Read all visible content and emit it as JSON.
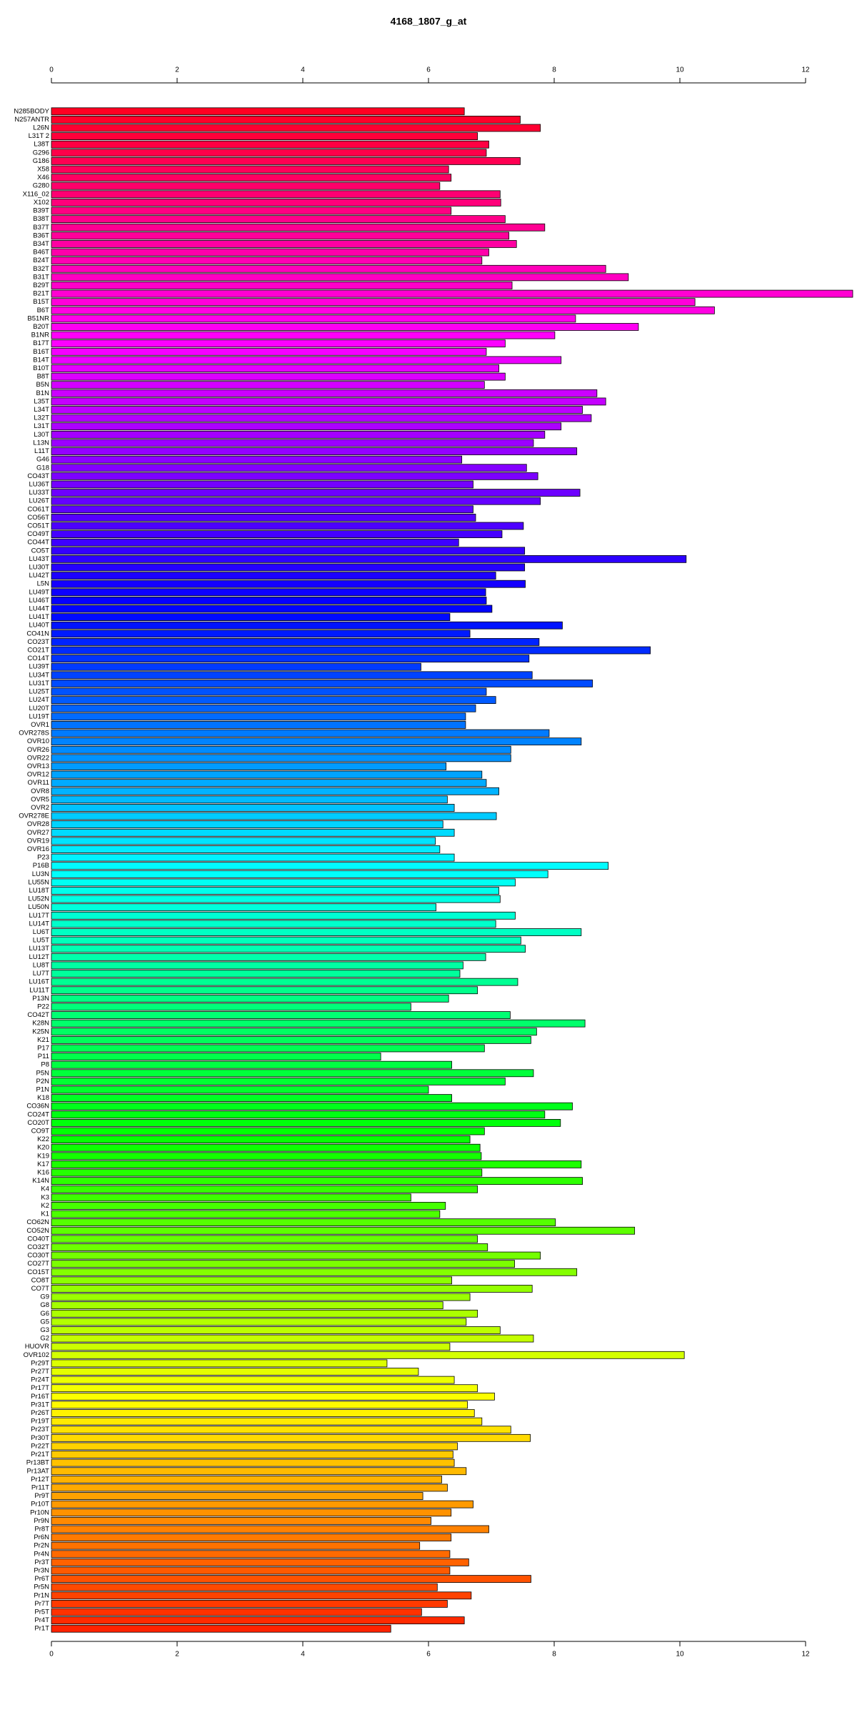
{
  "chart_data": {
    "type": "barh",
    "title": "4168_1807_g_at",
    "categories": [
      "N285BODY",
      "N257ANTR",
      "L26N",
      "L31T 2",
      "L38T",
      "G296",
      "G186",
      "X58",
      "X46",
      "G280",
      "X116_02",
      "X102",
      "B39T",
      "B38T",
      "B37T",
      "B36T",
      "B34T",
      "B46T",
      "B24T",
      "B32T",
      "B31T",
      "B29T",
      "B21T",
      "B15T",
      "B6T",
      "B51NR",
      "B20T",
      "B1NR",
      "B17T",
      "B16T",
      "B14T",
      "B10T",
      "B8T",
      "B5N",
      "B1N",
      "L35T",
      "L34T",
      "L32T",
      "L31T",
      "L30T",
      "L13N",
      "L11T",
      "G46",
      "G18",
      "CO43T",
      "LU36T",
      "LU33T",
      "LU26T",
      "CO61T",
      "CO56T",
      "CO51T",
      "CO49T",
      "CO44T",
      "CO5T",
      "LU43T",
      "LU30T",
      "LU42T",
      "L5N",
      "LU49T",
      "LU46T",
      "LU44T",
      "LU41T",
      "LU40T",
      "CO41N",
      "CO23T",
      "CO21T",
      "CO14T",
      "LU39T",
      "LU34T",
      "LU31T",
      "LU25T",
      "LU24T",
      "LU20T",
      "LU19T",
      "OVR1",
      "OVR278S",
      "OVR10",
      "OVR26",
      "OVR22",
      "OVR13",
      "OVR12",
      "OVR11",
      "OVR8",
      "OVR5",
      "OVR2",
      "OVR278E",
      "OVR28",
      "OVR27",
      "OVR19",
      "OVR16",
      "P23",
      "P16B",
      "LU3N",
      "LU55N",
      "LU18T",
      "LU52N",
      "LU50N",
      "LU17T",
      "LU14T",
      "LU6T",
      "LU5T",
      "LU13T",
      "LU12T",
      "LU8T",
      "LU7T",
      "LU16T",
      "LU11T",
      "P13N",
      "P22",
      "CO42T",
      "K28N",
      "K25N",
      "K21",
      "P17",
      "P11",
      "P8",
      "P5N",
      "P2N",
      "P1N",
      "K18",
      "CO36N",
      "CO24T",
      "CO20T",
      "CO9T",
      "K22",
      "K20",
      "K19",
      "K17",
      "K16",
      "K14N",
      "K4",
      "K3",
      "K2",
      "K1",
      "CO62N",
      "CO52N",
      "CO40T",
      "CO32T",
      "CO30T",
      "CO27T",
      "CO15T",
      "CO8T",
      "CO7T",
      "G9",
      "G8",
      "G6",
      "G5",
      "G3",
      "G2",
      "HUOVR",
      "OVR102",
      "Pr29T",
      "Pr27T",
      "Pr24T",
      "Pr17T",
      "Pr16T",
      "Pr31T",
      "Pr26T",
      "Pr19T",
      "Pr23T",
      "Pr30T",
      "Pr22T",
      "Pr21T",
      "Pr13BT",
      "Pr13AT",
      "Pr12T",
      "Pr11T",
      "Pr9T",
      "Pr10T",
      "Pr10N",
      "Pr9N",
      "Pr8T",
      "Pr6N",
      "Pr2N",
      "Pr4N",
      "Pr3T",
      "Pr3N",
      "Pr6T",
      "Pr5N",
      "Pr1N",
      "Pr7T",
      "Pr5T",
      "Pr4T",
      "Pr1T"
    ],
    "values": [
      6.57,
      7.46,
      7.78,
      6.78,
      6.96,
      6.92,
      7.46,
      6.32,
      6.36,
      6.18,
      7.14,
      7.15,
      6.36,
      7.22,
      7.85,
      7.28,
      7.4,
      6.96,
      6.85,
      8.82,
      9.18,
      7.33,
      12.75,
      10.24,
      10.55,
      8.34,
      9.34,
      8.01,
      7.22,
      6.92,
      8.11,
      7.12,
      7.22,
      6.89,
      8.68,
      8.82,
      8.45,
      8.59,
      8.11,
      7.85,
      7.67,
      8.36,
      6.53,
      7.56,
      7.74,
      6.71,
      8.41,
      7.78,
      6.71,
      6.75,
      7.51,
      7.17,
      6.48,
      7.53,
      10.1,
      7.53,
      7.07,
      7.54,
      6.91,
      6.92,
      7.01,
      6.34,
      8.13,
      6.66,
      7.76,
      9.53,
      7.6,
      5.88,
      7.65,
      8.61,
      6.92,
      7.07,
      6.75,
      6.59,
      6.59,
      7.92,
      8.43,
      7.31,
      7.31,
      6.28,
      6.85,
      6.92,
      7.12,
      6.3,
      6.41,
      7.08,
      6.23,
      6.41,
      6.11,
      6.18,
      6.41,
      8.86,
      7.9,
      7.38,
      7.12,
      7.14,
      6.12,
      7.38,
      7.07,
      8.43,
      7.47,
      7.54,
      6.91,
      6.55,
      6.5,
      7.42,
      6.78,
      6.32,
      5.72,
      7.3,
      8.49,
      7.72,
      7.63,
      6.89,
      5.24,
      6.37,
      7.67,
      7.22,
      6.0,
      6.37,
      8.29,
      7.85,
      8.1,
      6.89,
      6.66,
      6.82,
      6.84,
      8.43,
      6.85,
      8.45,
      6.78,
      5.72,
      6.27,
      6.18,
      8.02,
      9.28,
      6.78,
      6.94,
      7.78,
      7.37,
      8.36,
      6.37,
      7.65,
      6.66,
      6.23,
      6.78,
      6.6,
      7.14,
      7.67,
      6.34,
      10.07,
      5.34,
      5.84,
      6.41,
      6.78,
      7.05,
      6.62,
      6.73,
      6.85,
      7.31,
      7.62,
      6.46,
      6.39,
      6.41,
      6.6,
      6.21,
      6.3,
      5.91,
      6.71,
      6.36,
      6.04,
      6.96,
      6.36,
      5.86,
      6.34,
      6.64,
      6.34,
      7.63,
      6.14,
      6.68,
      6.3,
      5.89,
      6.57,
      5.4
    ],
    "xlim": [
      0,
      12
    ],
    "xticks": [
      0,
      2,
      4,
      6,
      8,
      10,
      12
    ],
    "color_hue_range": [
      352,
      8
    ],
    "bar_outline": "#000000"
  }
}
